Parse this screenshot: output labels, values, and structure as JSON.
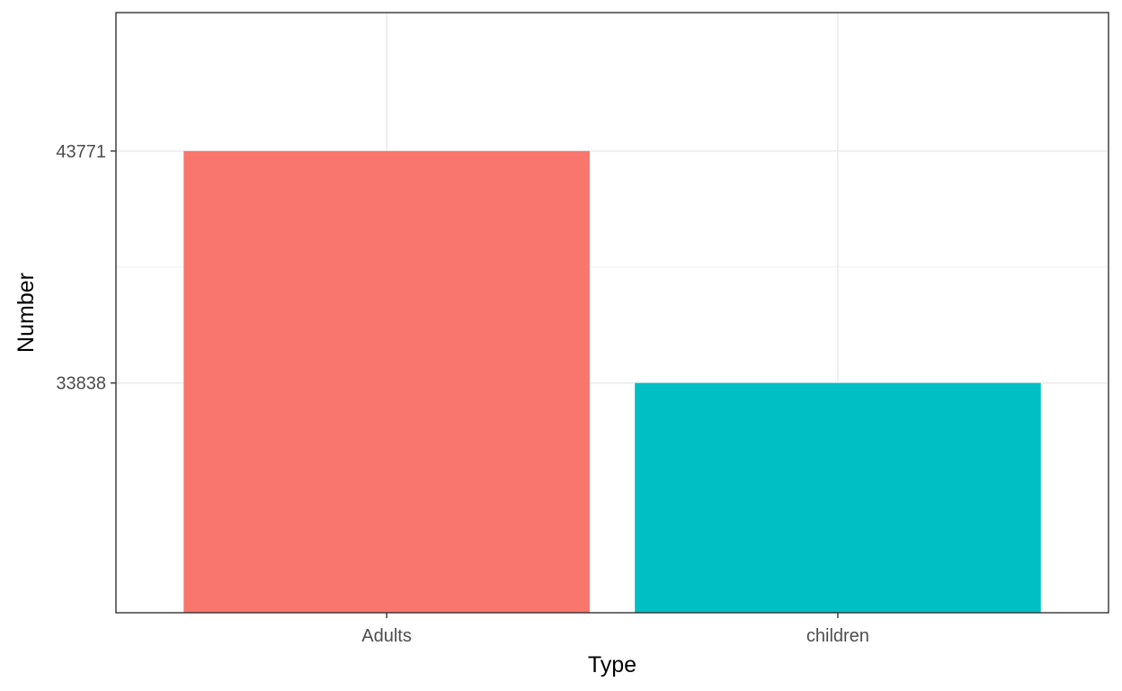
{
  "chart_data": {
    "type": "bar",
    "title": "",
    "xlabel": "Type",
    "ylabel": "Number",
    "categories": [
      "Adults",
      "children"
    ],
    "values": [
      43771,
      33838
    ],
    "colors": [
      "#F8766D",
      "#00BFC4"
    ],
    "y_tick_labels": [
      "33838",
      "43771"
    ],
    "y_tick_values": [
      33838,
      43771
    ],
    "ylim": [
      24000,
      49700
    ],
    "grid": true,
    "legend": "none",
    "colors_meta": {
      "panel_border": "#333333",
      "grid": "#ebebeb",
      "background": "#ffffff"
    }
  }
}
